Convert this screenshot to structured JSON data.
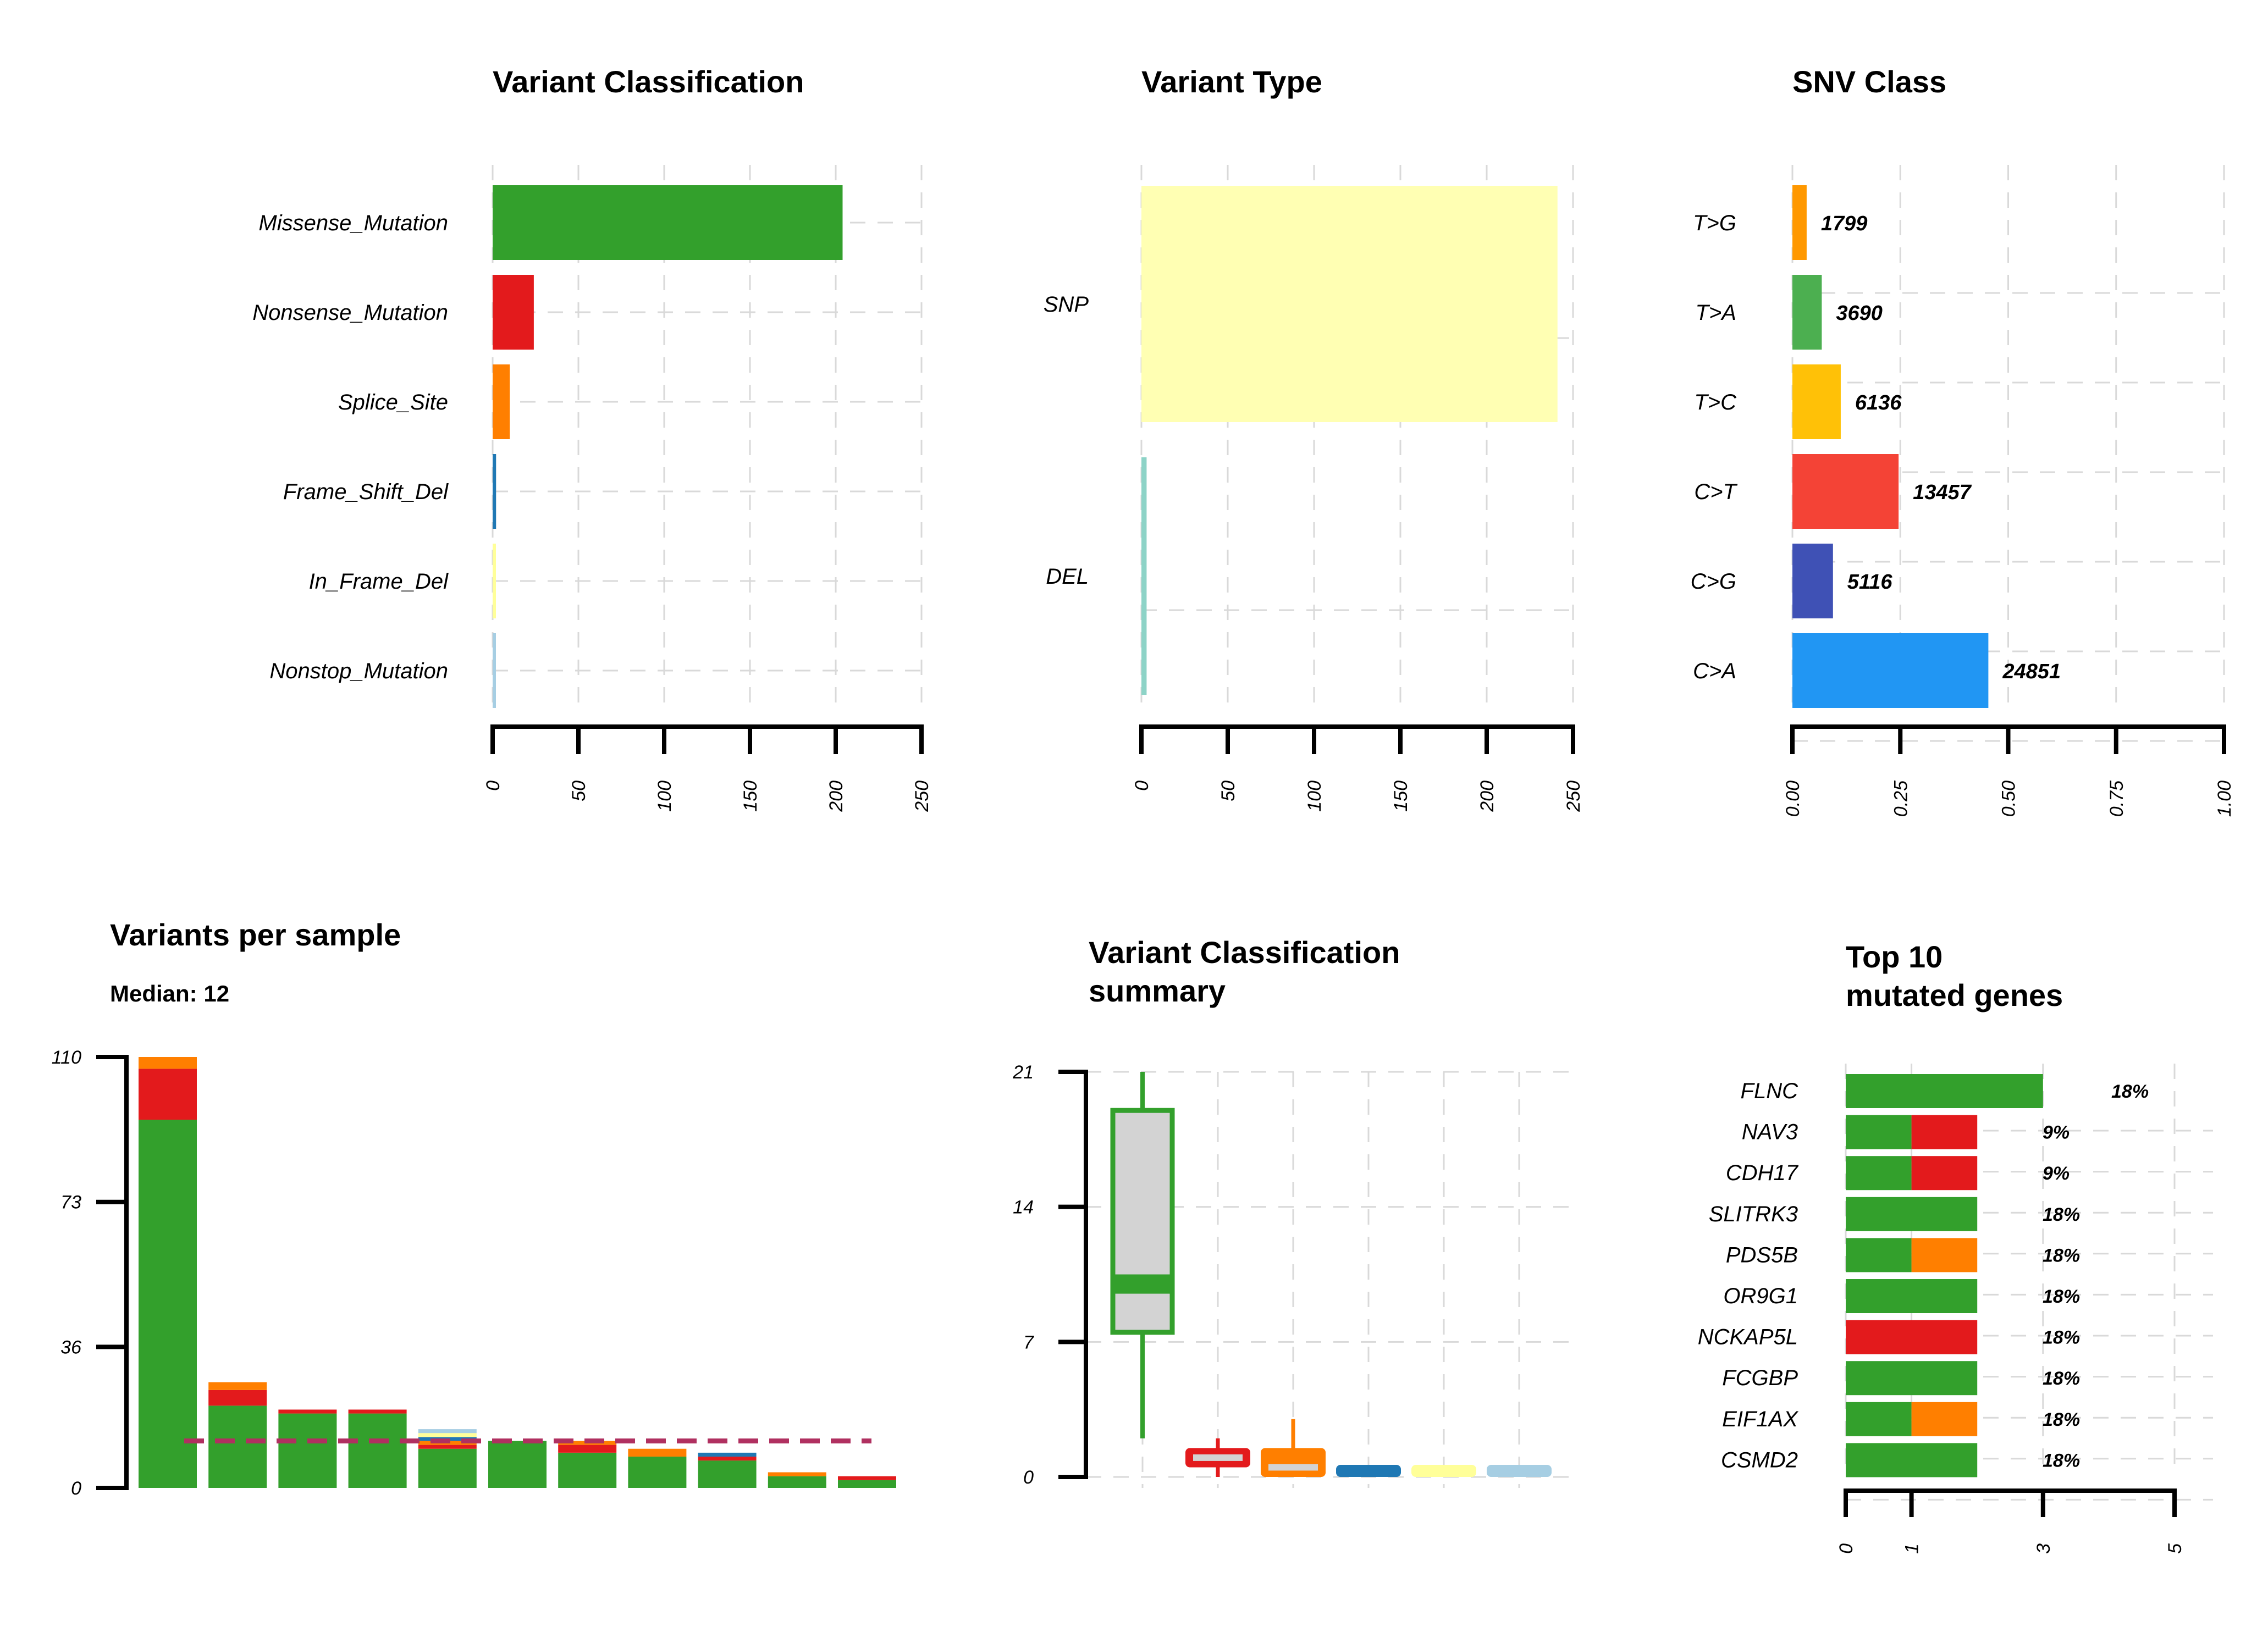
{
  "colors": {
    "Missense_Mutation": "#33A02C",
    "Nonsense_Mutation": "#E31A1C",
    "Splice_Site": "#FF7F00",
    "Frame_Shift_Del": "#1F78B4",
    "In_Frame_Del": "#FFFF99",
    "Nonstop_Mutation": "#A6CEE3",
    "SNP": "#FFFFB3",
    "DEL": "#8DD3C7",
    "T>G": "#FF9800",
    "T>A": "#4CAF50",
    "T>C": "#FFC107",
    "C>T": "#F44336",
    "C>G": "#3F51B5",
    "C>A": "#2196F3",
    "median_line": "#B03060",
    "box_fill": "#D3D3D3"
  },
  "chart_data": [
    {
      "type": "bar",
      "orientation": "horizontal",
      "title": "Variant Classification",
      "categories": [
        "Missense_Mutation",
        "Nonsense_Mutation",
        "Splice_Site",
        "Frame_Shift_Del",
        "In_Frame_Del",
        "Nonstop_Mutation"
      ],
      "values": [
        204,
        24,
        10,
        2,
        1,
        1
      ],
      "xlim": [
        0,
        250
      ],
      "xticks": [
        "0",
        "50",
        "100",
        "150",
        "200",
        "250"
      ],
      "grid": true
    },
    {
      "type": "bar",
      "orientation": "horizontal",
      "title": "Variant Type",
      "categories": [
        "SNP",
        "DEL"
      ],
      "values": [
        241,
        3
      ],
      "xlim": [
        0,
        250
      ],
      "xticks": [
        "0",
        "50",
        "100",
        "150",
        "200",
        "250"
      ],
      "grid": true
    },
    {
      "type": "bar",
      "orientation": "horizontal",
      "title": "SNV Class",
      "categories": [
        "T>G",
        "T>A",
        "T>C",
        "C>T",
        "C>G",
        "C>A"
      ],
      "values": [
        0.033,
        0.068,
        0.112,
        0.246,
        0.094,
        0.454
      ],
      "data_labels": [
        "1799",
        "3690",
        "6136",
        "13457",
        "5116",
        "24851"
      ],
      "xlim": [
        0,
        1
      ],
      "xticks": [
        "0.00",
        "0.25",
        "0.50",
        "0.75",
        "1.00"
      ],
      "grid": true
    },
    {
      "type": "bar",
      "stacked": true,
      "title": "Variants per sample",
      "subtitle": "Median: 12",
      "median": 12,
      "ylim": [
        0,
        110
      ],
      "yticks": [
        "0",
        "36",
        "73",
        "110"
      ],
      "stack_order": [
        "Missense_Mutation",
        "Nonsense_Mutation",
        "Splice_Site",
        "Frame_Shift_Del",
        "In_Frame_Del",
        "Nonstop_Mutation"
      ],
      "samples": [
        [
          94,
          13,
          3,
          0,
          0,
          0
        ],
        [
          21,
          4,
          2,
          0,
          0,
          0
        ],
        [
          19,
          1,
          0,
          0,
          0,
          0
        ],
        [
          19,
          1,
          0,
          0,
          0,
          0
        ],
        [
          10,
          1,
          1,
          1,
          1,
          1
        ],
        [
          12,
          0,
          0,
          0,
          0,
          0
        ],
        [
          9,
          2,
          1,
          0,
          0,
          0
        ],
        [
          8,
          0,
          2,
          0,
          0,
          0
        ],
        [
          7,
          1,
          0,
          1,
          0,
          0
        ],
        [
          3,
          0,
          1,
          0,
          0,
          0
        ],
        [
          2,
          1,
          0,
          0,
          0,
          0
        ]
      ]
    },
    {
      "type": "box",
      "title_lines": [
        "Variant Classification",
        "summary"
      ],
      "ylim": [
        0,
        21
      ],
      "yticks": [
        "0",
        "7",
        "14",
        "21"
      ],
      "grid": true,
      "boxes": [
        {
          "class": "Missense_Mutation",
          "min": 2,
          "q1": 7.5,
          "median": 10,
          "q3": 19,
          "max": 21,
          "notch": [
            9.5,
            10.5
          ]
        },
        {
          "class": "Nonsense_Mutation",
          "min": 0,
          "q1": 0.5,
          "median": 1,
          "q3": 1.5,
          "max": 2
        },
        {
          "class": "Splice_Site",
          "min": 0,
          "q1": 0,
          "median": 0.5,
          "q3": 1.5,
          "max": 3
        },
        {
          "class": "Frame_Shift_Del",
          "min": 0,
          "q1": 0,
          "median": 0,
          "q3": 0.4,
          "max": 0.4
        },
        {
          "class": "In_Frame_Del",
          "min": 0,
          "q1": 0,
          "median": 0,
          "q3": 0.4,
          "max": 0.4
        },
        {
          "class": "Nonstop_Mutation",
          "min": 0,
          "q1": 0,
          "median": 0,
          "q3": 0.4,
          "max": 0.4
        }
      ]
    },
    {
      "type": "bar",
      "orientation": "horizontal",
      "stacked": true,
      "title_lines": [
        "Top 10",
        "mutated genes"
      ],
      "xlim": [
        0,
        5
      ],
      "xticks": [
        "0",
        "1",
        "3",
        "5"
      ],
      "xtick_values": [
        0,
        1,
        3,
        5
      ],
      "grid": true,
      "genes": [
        {
          "gene": "FLNC",
          "segments": [
            [
              "Missense_Mutation",
              3
            ]
          ],
          "label": "18%"
        },
        {
          "gene": "NAV3",
          "segments": [
            [
              "Missense_Mutation",
              1
            ],
            [
              "Nonsense_Mutation",
              1
            ]
          ],
          "label": "9%"
        },
        {
          "gene": "CDH17",
          "segments": [
            [
              "Missense_Mutation",
              1
            ],
            [
              "Nonsense_Mutation",
              1
            ]
          ],
          "label": "9%"
        },
        {
          "gene": "SLITRK3",
          "segments": [
            [
              "Missense_Mutation",
              2
            ]
          ],
          "label": "18%"
        },
        {
          "gene": "PDS5B",
          "segments": [
            [
              "Missense_Mutation",
              1
            ],
            [
              "Splice_Site",
              1
            ]
          ],
          "label": "18%"
        },
        {
          "gene": "OR9G1",
          "segments": [
            [
              "Missense_Mutation",
              2
            ]
          ],
          "label": "18%"
        },
        {
          "gene": "NCKAP5L",
          "segments": [
            [
              "Nonsense_Mutation",
              2
            ]
          ],
          "label": "18%"
        },
        {
          "gene": "FCGBP",
          "segments": [
            [
              "Missense_Mutation",
              2
            ]
          ],
          "label": "18%"
        },
        {
          "gene": "EIF1AX",
          "segments": [
            [
              "Missense_Mutation",
              1
            ],
            [
              "Splice_Site",
              1
            ]
          ],
          "label": "18%"
        },
        {
          "gene": "CSMD2",
          "segments": [
            [
              "Missense_Mutation",
              2
            ]
          ],
          "label": "18%"
        }
      ]
    }
  ]
}
